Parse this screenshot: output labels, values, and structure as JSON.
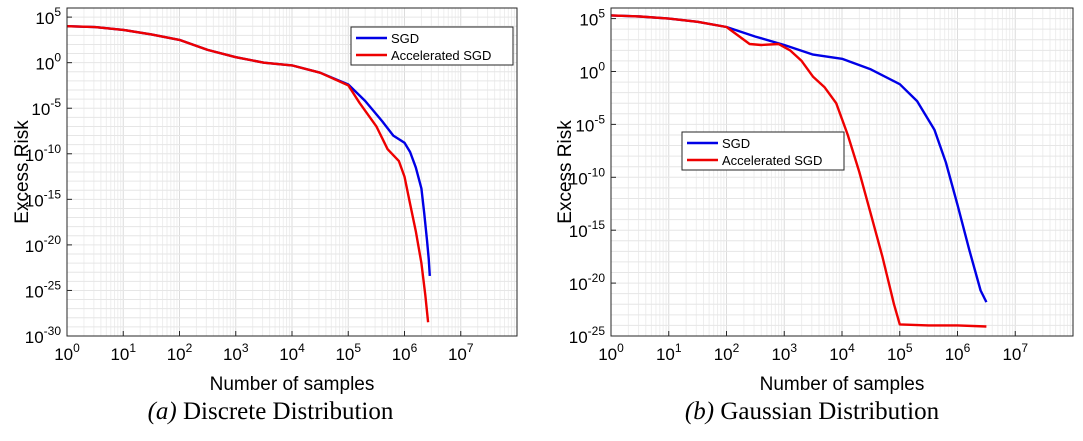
{
  "chart_data": [
    {
      "type": "line",
      "caption_tag": "(a)",
      "caption_text": "Discrete Distribution",
      "xlabel": "Number of samples",
      "ylabel": "Excess Risk",
      "x_scale": "log",
      "y_scale": "log",
      "xlim_exp": [
        0,
        8
      ],
      "ylim_exp": [
        -30,
        6
      ],
      "x_tick_exps": [
        0,
        1,
        2,
        3,
        4,
        5,
        6,
        7
      ],
      "y_tick_exps": [
        5,
        0,
        -5,
        -10,
        -15,
        -20,
        -25,
        -30
      ],
      "grid": true,
      "legend_position": "top-right",
      "series": [
        {
          "name": "SGD",
          "color": "#0000e6",
          "points_log10": [
            [
              0,
              4
            ],
            [
              0.5,
              3.9
            ],
            [
              1,
              3.6
            ],
            [
              1.5,
              3.1
            ],
            [
              2,
              2.5
            ],
            [
              2.5,
              1.4
            ],
            [
              3,
              0.6
            ],
            [
              3.5,
              0.0
            ],
            [
              4,
              -0.3
            ],
            [
              4.5,
              -1.1
            ],
            [
              5,
              -2.4
            ],
            [
              5.3,
              -4.2
            ],
            [
              5.6,
              -6.4
            ],
            [
              5.8,
              -8.0
            ],
            [
              6.0,
              -8.8
            ],
            [
              6.1,
              -9.8
            ],
            [
              6.2,
              -11.5
            ],
            [
              6.3,
              -13.8
            ],
            [
              6.35,
              -16.5
            ],
            [
              6.4,
              -19.5
            ],
            [
              6.43,
              -21.5
            ],
            [
              6.45,
              -23.4
            ]
          ]
        },
        {
          "name": "Accelerated SGD",
          "color": "#ee0000",
          "points_log10": [
            [
              0,
              4
            ],
            [
              0.5,
              3.9
            ],
            [
              1,
              3.6
            ],
            [
              1.5,
              3.1
            ],
            [
              2,
              2.5
            ],
            [
              2.5,
              1.4
            ],
            [
              3,
              0.6
            ],
            [
              3.5,
              0.0
            ],
            [
              4,
              -0.3
            ],
            [
              4.5,
              -1.1
            ],
            [
              5,
              -2.5
            ],
            [
              5.2,
              -4.4
            ],
            [
              5.5,
              -7.0
            ],
            [
              5.7,
              -9.5
            ],
            [
              5.9,
              -10.8
            ],
            [
              6.0,
              -12.5
            ],
            [
              6.1,
              -15.5
            ],
            [
              6.2,
              -18.5
            ],
            [
              6.3,
              -22.0
            ],
            [
              6.37,
              -25.5
            ],
            [
              6.42,
              -28.5
            ]
          ]
        }
      ]
    },
    {
      "type": "line",
      "caption_tag": "(b)",
      "caption_text": "Gaussian Distribution",
      "xlabel": "Number of samples",
      "ylabel": "Excess Risk",
      "x_scale": "log",
      "y_scale": "log",
      "xlim_exp": [
        0,
        8
      ],
      "ylim_exp": [
        -25,
        6
      ],
      "x_tick_exps": [
        0,
        1,
        2,
        3,
        4,
        5,
        6,
        7
      ],
      "y_tick_exps": [
        5,
        0,
        -5,
        -10,
        -15,
        -20,
        -25
      ],
      "grid": true,
      "legend_position": "middle-left",
      "series": [
        {
          "name": "SGD",
          "color": "#0000e6",
          "points_log10": [
            [
              0,
              5.3
            ],
            [
              0.5,
              5.2
            ],
            [
              1,
              5.0
            ],
            [
              1.5,
              4.7
            ],
            [
              2,
              4.2
            ],
            [
              2.5,
              3.3
            ],
            [
              3,
              2.5
            ],
            [
              3.5,
              1.6
            ],
            [
              4,
              1.2
            ],
            [
              4.5,
              0.2
            ],
            [
              5,
              -1.2
            ],
            [
              5.3,
              -2.8
            ],
            [
              5.6,
              -5.5
            ],
            [
              5.8,
              -8.6
            ],
            [
              6.0,
              -12.6
            ],
            [
              6.2,
              -16.8
            ],
            [
              6.4,
              -20.7
            ],
            [
              6.5,
              -21.8
            ]
          ]
        },
        {
          "name": "Accelerated SGD",
          "color": "#ee0000",
          "points_log10": [
            [
              0,
              5.3
            ],
            [
              0.5,
              5.2
            ],
            [
              1,
              5.0
            ],
            [
              1.5,
              4.7
            ],
            [
              2,
              4.2
            ],
            [
              2.4,
              2.6
            ],
            [
              2.6,
              2.5
            ],
            [
              2.9,
              2.6
            ],
            [
              3.1,
              2.0
            ],
            [
              3.3,
              1.0
            ],
            [
              3.5,
              -0.5
            ],
            [
              3.7,
              -1.5
            ],
            [
              3.9,
              -3.0
            ],
            [
              4.1,
              -6.0
            ],
            [
              4.3,
              -9.5
            ],
            [
              4.5,
              -13.5
            ],
            [
              4.7,
              -17.5
            ],
            [
              4.9,
              -22.0
            ],
            [
              5.0,
              -23.9
            ],
            [
              5.5,
              -24.0
            ],
            [
              6.0,
              -24.0
            ],
            [
              6.5,
              -24.1
            ]
          ]
        }
      ]
    }
  ]
}
